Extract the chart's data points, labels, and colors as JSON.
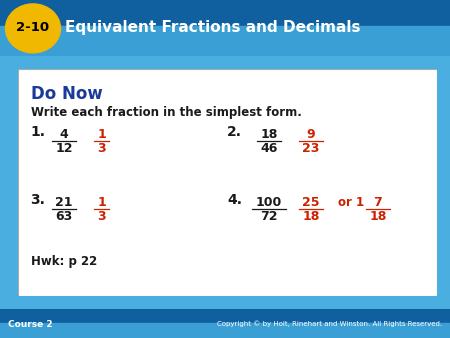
{
  "title_badge": "2-10",
  "title_text": "Equivalent Fractions and Decimals",
  "header_bg_top": "#1a6aad",
  "header_bg_bottom": "#4aaee0",
  "badge_bg": "#f0b800",
  "badge_text_color": "#000000",
  "header_text_color": "#ffffff",
  "content_bg": "#ffffff",
  "content_border": "#bbbbbb",
  "footer_bg_top": "#1a6aad",
  "footer_bg_bottom": "#4aaee0",
  "footer_left": "Course 2",
  "footer_right": "Copyright © by Holt, Rinehart and Winston. All Rights Reserved.",
  "do_now_color": "#1a3a9a",
  "black_text": "#1a1a1a",
  "red_text": "#cc2200",
  "subtitle": "Write each fraction in the simplest form.",
  "hwk": "Hwk: p 22",
  "figw": 4.5,
  "figh": 3.38,
  "dpi": 100
}
